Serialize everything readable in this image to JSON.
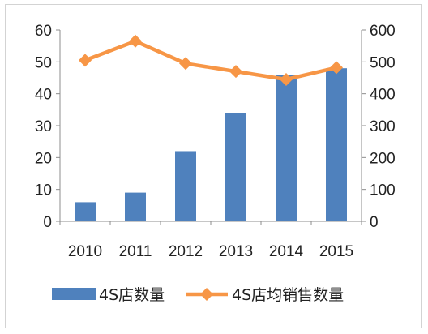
{
  "chart_data": {
    "type": "bar",
    "categories": [
      "2010",
      "2011",
      "2012",
      "2013",
      "2014",
      "2015"
    ],
    "series": [
      {
        "name": "4S店数量",
        "type": "bar",
        "axis": "left",
        "color": "#4f81bd",
        "values": [
          6,
          9,
          22,
          34,
          46,
          48
        ]
      },
      {
        "name": "4S店均销售数量",
        "type": "line",
        "axis": "right",
        "color": "#f79646",
        "marker": "diamond",
        "values": [
          505,
          565,
          495,
          470,
          445,
          482
        ]
      }
    ],
    "y_left": {
      "min": 0,
      "max": 60,
      "step": 10,
      "ticks": [
        "0",
        "10",
        "20",
        "30",
        "40",
        "50",
        "60"
      ]
    },
    "y_right": {
      "min": 0,
      "max": 600,
      "step": 100,
      "ticks": [
        "0",
        "100",
        "200",
        "300",
        "400",
        "500",
        "600"
      ]
    },
    "grid": false,
    "legend": "bottom"
  }
}
